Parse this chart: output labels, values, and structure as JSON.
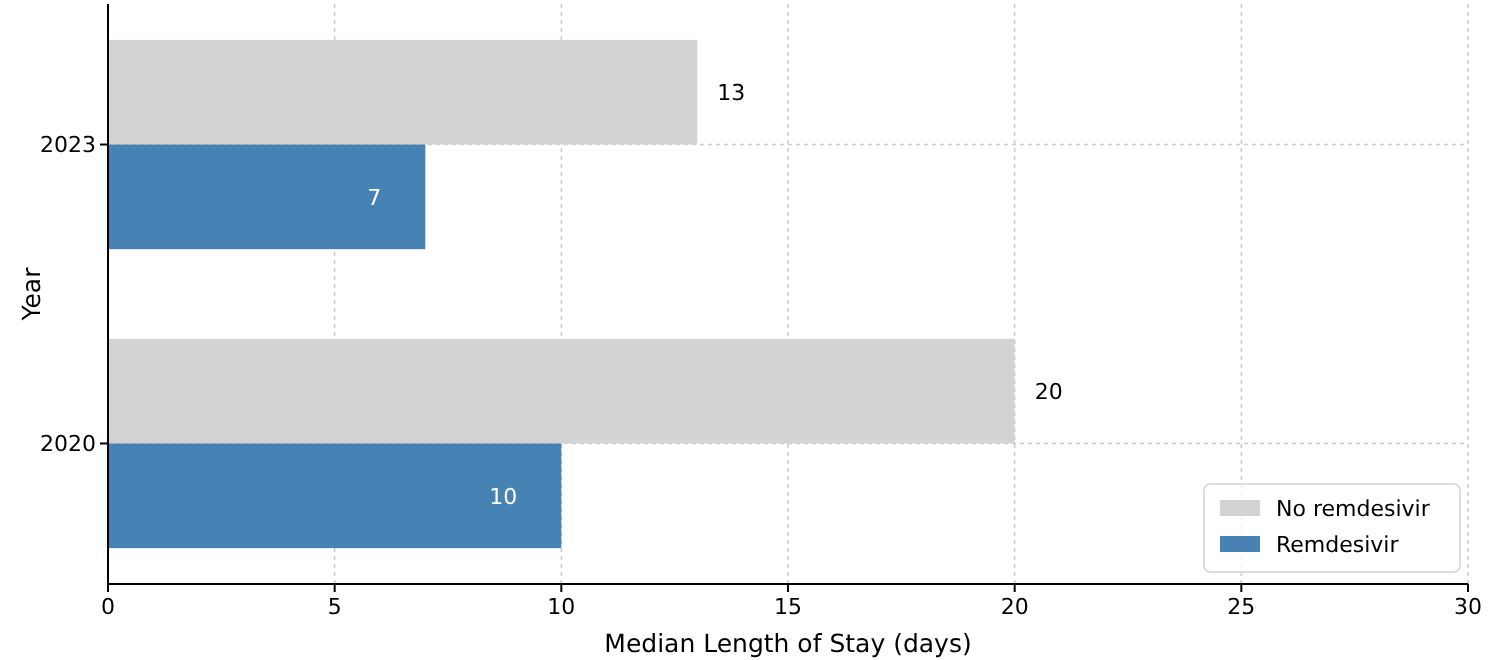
{
  "chart_data": {
    "type": "bar",
    "orientation": "horizontal",
    "xlabel": "Median Length of Stay (days)",
    "ylabel": "Year",
    "categories": [
      "2023",
      "2020"
    ],
    "series": [
      {
        "name": "No remdesivir",
        "color": "#d3d3d3",
        "values": [
          13,
          20
        ]
      },
      {
        "name": "Remdesivir",
        "color": "#4682b4",
        "values": [
          7,
          10
        ]
      }
    ],
    "xlim": [
      0,
      30
    ],
    "xticks": [
      0,
      5,
      10,
      15,
      20,
      25,
      30
    ],
    "grid": true,
    "legend": "bottom right",
    "data_labels": true
  }
}
